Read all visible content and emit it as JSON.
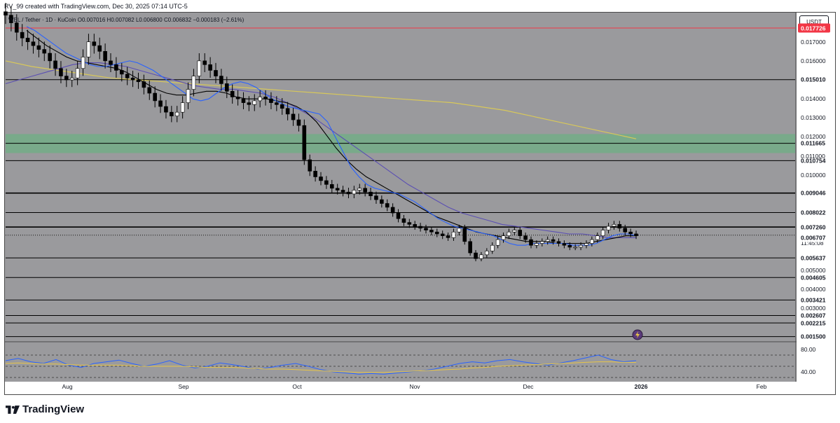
{
  "header": {
    "created_by": "RV_99 created with TradingView.com, Dec 30, 2025 07:14 UTC-5"
  },
  "ohlc": {
    "symbol_line": "WEL / Tether · 1D · KuCoin",
    "open": "O0.007016",
    "high": "H0.007082",
    "low": "L0.006800",
    "close": "C0.006832",
    "change": "−0.000183 (−2.61%)"
  },
  "currency": "USDT",
  "footer": {
    "brand": "TradingView"
  },
  "colors": {
    "background": "#9a9a9d",
    "up": "#ffffff",
    "down": "#000000",
    "ma_fast": "#2962ff",
    "ma_mid": "#000000",
    "ma_slow": "#5b4fb3",
    "ma_long": "#d8c85a",
    "resistance_red": "#f23645",
    "zone": "#5fb87a",
    "rsi": "#2962ff",
    "rsi_ma": "#e8c547"
  },
  "chart_data": [
    {
      "type": "candlestick",
      "title": "",
      "x_labels": [
        "Aug",
        "Sep",
        "Oct",
        "Nov",
        "Dec",
        "2026",
        "Feb"
      ],
      "y_ticks": [
        "0.017000",
        "0.016000",
        "0.014000",
        "0.013000",
        "0.012000",
        "0.011000",
        "0.010000",
        "0.005000",
        "0.004000",
        "0.003000"
      ],
      "ylim": [
        0.0013,
        0.0185
      ],
      "horizontal_levels": [
        {
          "value": 0.017726,
          "label": "0.017726",
          "color": "#f23645"
        },
        {
          "value": 0.01501,
          "label": "0.015010",
          "color": "#000000"
        },
        {
          "value": 0.011665,
          "label": "0.011665",
          "color": "#000000"
        },
        {
          "value": 0.010754,
          "label": "0.010754",
          "color": "#000000"
        },
        {
          "value": 0.009046,
          "label": "0.009046",
          "color": "#000000"
        },
        {
          "value": 0.008022,
          "label": "0.008022",
          "color": "#000000"
        },
        {
          "value": 0.00726,
          "label": "0.007260",
          "color": "#000000"
        },
        {
          "value": 0.005637,
          "label": "0.005637",
          "color": "#000000"
        },
        {
          "value": 0.004605,
          "label": "0.004605",
          "color": "#000000"
        },
        {
          "value": 0.003421,
          "label": "0.003421",
          "color": "#000000"
        },
        {
          "value": 0.002607,
          "label": "0.002607",
          "color": "#000000"
        },
        {
          "value": 0.002215,
          "label": "0.002215",
          "color": "#000000"
        },
        {
          "value": 0.0015,
          "label": "0.001500",
          "color": "#000000"
        }
      ],
      "last_price": {
        "value": 0.006832,
        "label": "0.006832",
        "countdown": "11:45:08"
      },
      "other_tags": [
        {
          "value": 0.006707,
          "label": "0.006707"
        }
      ],
      "zone": {
        "from": 0.01115,
        "to": 0.01215
      },
      "close_series": [
        0.0184,
        0.018,
        0.0175,
        0.0172,
        0.017,
        0.0168,
        0.0166,
        0.0164,
        0.016,
        0.0156,
        0.0152,
        0.015,
        0.0151,
        0.0156,
        0.0162,
        0.017,
        0.0168,
        0.0165,
        0.016,
        0.0158,
        0.0155,
        0.0153,
        0.0151,
        0.015,
        0.0149,
        0.0146,
        0.0143,
        0.0139,
        0.0136,
        0.0133,
        0.0131,
        0.0133,
        0.0138,
        0.0145,
        0.0152,
        0.016,
        0.0158,
        0.0155,
        0.0152,
        0.0148,
        0.0144,
        0.0141,
        0.014,
        0.0138,
        0.0137,
        0.0139,
        0.0141,
        0.014,
        0.0138,
        0.0137,
        0.0135,
        0.0132,
        0.0129,
        0.0126,
        0.0108,
        0.0102,
        0.0099,
        0.0097,
        0.0095,
        0.0093,
        0.0092,
        0.0091,
        0.009,
        0.0092,
        0.0093,
        0.0091,
        0.0089,
        0.0087,
        0.0085,
        0.0083,
        0.008,
        0.0077,
        0.0075,
        0.0074,
        0.0073,
        0.0072,
        0.0071,
        0.007,
        0.0069,
        0.0068,
        0.0067,
        0.007,
        0.0072,
        0.0065,
        0.0059,
        0.0056,
        0.0058,
        0.006,
        0.0063,
        0.0066,
        0.0068,
        0.007,
        0.0071,
        0.0068,
        0.0066,
        0.0063,
        0.0064,
        0.0065,
        0.0066,
        0.0065,
        0.0064,
        0.0063,
        0.0062,
        0.0062,
        0.0063,
        0.0064,
        0.0066,
        0.0068,
        0.0071,
        0.0073,
        0.0074,
        0.0072,
        0.007,
        0.0069,
        0.0068
      ],
      "ma_fast": [
        0.0178,
        0.0176,
        0.0173,
        0.017,
        0.0167,
        0.0164,
        0.0162,
        0.016,
        0.0158,
        0.0157,
        0.0157,
        0.0158,
        0.0159,
        0.016,
        0.0159,
        0.0157,
        0.0155,
        0.0152,
        0.0149,
        0.0146,
        0.0143,
        0.014,
        0.0139,
        0.014,
        0.0143,
        0.0146,
        0.0148,
        0.0149,
        0.0148,
        0.0146,
        0.0143,
        0.014,
        0.0138,
        0.0136,
        0.0135,
        0.0134,
        0.0133,
        0.0132,
        0.0128,
        0.012,
        0.0112,
        0.0104,
        0.0099,
        0.0095,
        0.0093,
        0.0092,
        0.0091,
        0.009,
        0.0088,
        0.0086,
        0.0083,
        0.008,
        0.0077,
        0.0075,
        0.0073,
        0.0072,
        0.0071,
        0.007,
        0.0069,
        0.0068,
        0.0066,
        0.0064,
        0.0063,
        0.0063,
        0.0064,
        0.0064,
        0.0064,
        0.0064,
        0.0064,
        0.0063,
        0.0063,
        0.0063,
        0.0064,
        0.0066,
        0.0068,
        0.0069,
        0.0069,
        0.0068
      ],
      "ma_mid": [
        0.0176,
        0.0172,
        0.0168,
        0.0165,
        0.0162,
        0.016,
        0.0159,
        0.0158,
        0.0157,
        0.0156,
        0.0154,
        0.0151,
        0.0148,
        0.0145,
        0.0143,
        0.0142,
        0.0142,
        0.0143,
        0.0144,
        0.0144,
        0.0143,
        0.0141,
        0.014,
        0.014,
        0.014,
        0.0139,
        0.0138,
        0.0136,
        0.0133,
        0.0128,
        0.0121,
        0.0114,
        0.0108,
        0.0103,
        0.0099,
        0.0096,
        0.0093,
        0.009,
        0.0087,
        0.0084,
        0.0081,
        0.0078,
        0.0076,
        0.0074,
        0.0072,
        0.007,
        0.0069,
        0.0068,
        0.0067,
        0.0066,
        0.0065,
        0.0065,
        0.0065,
        0.0064,
        0.0064,
        0.0064,
        0.0064,
        0.0065,
        0.0066,
        0.0067,
        0.0068,
        0.0068
      ],
      "ma_slow": [
        0.0148,
        0.015,
        0.0152,
        0.0154,
        0.0156,
        0.0158,
        0.0159,
        0.0159,
        0.0158,
        0.0157,
        0.0155,
        0.0153,
        0.0151,
        0.0149,
        0.0147,
        0.0146,
        0.0145,
        0.0145,
        0.0144,
        0.0143,
        0.0141,
        0.0138,
        0.0134,
        0.013,
        0.0125,
        0.012,
        0.0115,
        0.011,
        0.0105,
        0.01,
        0.0095,
        0.0091,
        0.0087,
        0.0083,
        0.008,
        0.0078,
        0.0076,
        0.0074,
        0.0073,
        0.0072,
        0.0071,
        0.007,
        0.0069,
        0.0069,
        0.0068,
        0.0067,
        0.0067,
        0.0067
      ],
      "ma_long": [
        0.016,
        0.0157,
        0.0155,
        0.0153,
        0.0151,
        0.015,
        0.0149,
        0.0148,
        0.0147,
        0.0146,
        0.0145,
        0.0144,
        0.0143,
        0.0142,
        0.0141,
        0.014,
        0.0139,
        0.0138,
        0.0136,
        0.0134,
        0.0131,
        0.0128,
        0.0125,
        0.0122,
        0.0119
      ],
      "xlabel": "",
      "ylabel": "",
      "legend": "none",
      "grid": false
    },
    {
      "type": "line",
      "title": "",
      "y_ticks": [
        "80.00",
        "40.00"
      ],
      "ylim": [
        25,
        90
      ],
      "bands": [
        70,
        50,
        30
      ],
      "series": [
        {
          "values": [
            60,
            64,
            58,
            55,
            62,
            52,
            48,
            55,
            58,
            61,
            55,
            50,
            54,
            60,
            52,
            47,
            50,
            56,
            53,
            49,
            45,
            48,
            52,
            55,
            50,
            44,
            40,
            38,
            36,
            37,
            36,
            38,
            40,
            42,
            45,
            50,
            55,
            58,
            56,
            60,
            62,
            58,
            55,
            52,
            56,
            60,
            65,
            70,
            62,
            58,
            60
          ]
        },
        {
          "values": [
            55,
            56,
            55,
            54,
            54,
            53,
            52,
            52,
            52,
            52,
            51,
            50,
            50,
            50,
            50,
            49,
            48,
            48,
            48,
            47,
            46,
            45,
            45,
            44,
            43,
            42,
            41,
            40,
            39,
            39,
            39,
            40,
            41,
            42,
            43,
            44,
            45,
            47,
            48,
            50,
            51,
            52,
            53,
            54,
            55,
            56,
            57,
            58,
            58,
            57,
            57
          ]
        }
      ]
    }
  ]
}
